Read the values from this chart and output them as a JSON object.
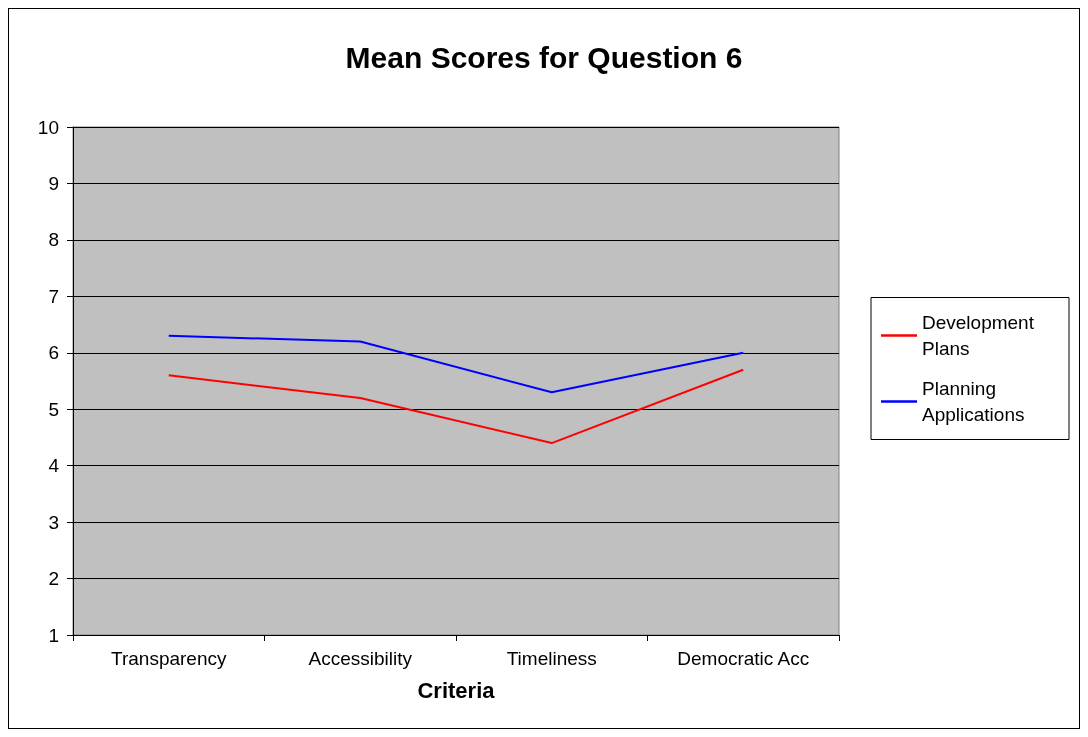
{
  "chart_data": {
    "type": "line",
    "title": "Mean Scores for Question 6",
    "xlabel": "Criteria",
    "categories": [
      "Transparency",
      "Accessibility",
      "Timeliness",
      "Democratic Acc"
    ],
    "series": [
      {
        "name": "Development Plans",
        "color": "#ff0000",
        "values": [
          5.6,
          5.2,
          4.4,
          5.7
        ]
      },
      {
        "name": "Planning Applications",
        "color": "#0000ff",
        "values": [
          6.3,
          6.2,
          5.3,
          6.0
        ]
      }
    ],
    "ylim": [
      1,
      10
    ],
    "yticks": [
      1,
      2,
      3,
      4,
      5,
      6,
      7,
      8,
      9,
      10
    ],
    "grid": "y",
    "legend": "right",
    "marker": "none",
    "line_style": "solid"
  }
}
